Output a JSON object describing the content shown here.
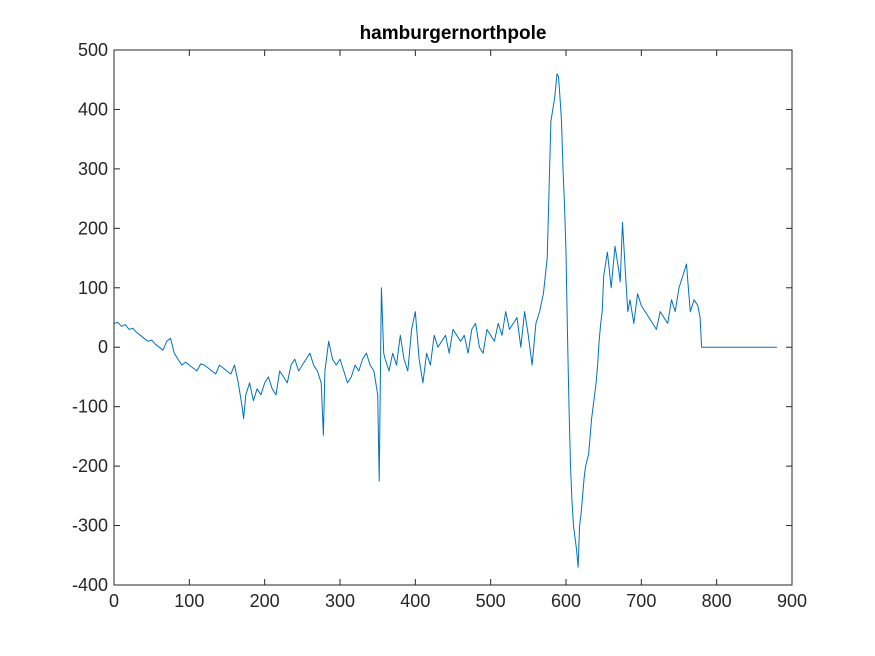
{
  "chart_data": {
    "type": "line",
    "title": "hamburgernorthpole",
    "xlabel": "",
    "ylabel": "",
    "xlim": [
      0,
      900
    ],
    "ylim": [
      -400,
      500
    ],
    "xticks": [
      0,
      100,
      200,
      300,
      400,
      500,
      600,
      700,
      800,
      900
    ],
    "yticks": [
      -400,
      -300,
      -200,
      -100,
      0,
      100,
      200,
      300,
      400,
      500
    ],
    "xtick_labels": [
      "0",
      "100",
      "200",
      "300",
      "400",
      "500",
      "600",
      "700",
      "800",
      "900"
    ],
    "ytick_labels": [
      "-400",
      "-300",
      "-200",
      "-100",
      "0",
      "100",
      "200",
      "300",
      "400",
      "500"
    ],
    "grid": false,
    "legend": "none",
    "colors": {
      "series": "#0072BD",
      "axis": "#262626",
      "background": "#ffffff"
    },
    "series": [
      {
        "x": [
          0,
          5,
          10,
          15,
          20,
          25,
          30,
          35,
          40,
          45,
          50,
          55,
          60,
          65,
          70,
          75,
          80,
          85,
          90,
          95,
          100,
          105,
          110,
          115,
          120,
          125,
          130,
          135,
          140,
          145,
          150,
          155,
          160,
          165,
          170,
          172,
          175,
          180,
          185,
          190,
          195,
          200,
          205,
          210,
          215,
          220,
          225,
          230,
          235,
          240,
          245,
          250,
          255,
          260,
          265,
          270,
          275,
          278,
          280,
          285,
          290,
          295,
          300,
          305,
          310,
          315,
          320,
          325,
          330,
          335,
          340,
          345,
          350,
          352,
          355,
          358,
          360,
          365,
          370,
          375,
          380,
          385,
          390,
          395,
          400,
          405,
          410,
          415,
          420,
          425,
          430,
          435,
          440,
          445,
          450,
          455,
          460,
          465,
          470,
          475,
          480,
          485,
          490,
          495,
          500,
          505,
          510,
          515,
          520,
          525,
          530,
          535,
          540,
          545,
          550,
          555,
          560,
          565,
          570,
          575,
          580,
          585,
          588,
          590,
          592,
          594,
          596,
          598,
          600,
          602,
          604,
          606,
          608,
          610,
          612,
          614,
          616,
          618,
          620,
          622,
          624,
          626,
          628,
          630,
          632,
          634,
          636,
          638,
          640,
          642,
          644,
          646,
          648,
          650,
          655,
          660,
          665,
          670,
          672,
          675,
          680,
          682,
          685,
          690,
          695,
          700,
          705,
          710,
          715,
          720,
          725,
          730,
          735,
          740,
          745,
          750,
          755,
          760,
          763,
          765,
          770,
          775,
          778,
          780,
          800,
          820,
          840,
          860,
          880
        ],
        "y": [
          40,
          42,
          35,
          38,
          30,
          32,
          25,
          20,
          15,
          10,
          12,
          5,
          0,
          -5,
          10,
          15,
          -10,
          -20,
          -30,
          -25,
          -30,
          -35,
          -40,
          -28,
          -30,
          -35,
          -40,
          -45,
          -30,
          -35,
          -40,
          -45,
          -30,
          -60,
          -100,
          -120,
          -80,
          -60,
          -90,
          -70,
          -80,
          -60,
          -50,
          -70,
          -80,
          -40,
          -50,
          -60,
          -30,
          -20,
          -40,
          -30,
          -20,
          -10,
          -30,
          -40,
          -60,
          -148,
          -40,
          10,
          -20,
          -30,
          -20,
          -40,
          -60,
          -50,
          -30,
          -40,
          -20,
          -10,
          -30,
          -40,
          -80,
          -225,
          100,
          -10,
          -20,
          -40,
          -10,
          -30,
          20,
          -20,
          -40,
          30,
          60,
          -20,
          -60,
          -10,
          -30,
          20,
          0,
          10,
          20,
          -10,
          30,
          20,
          10,
          20,
          -10,
          30,
          40,
          0,
          -10,
          30,
          20,
          10,
          40,
          20,
          60,
          30,
          40,
          50,
          0,
          60,
          20,
          -30,
          40,
          60,
          90,
          150,
          380,
          420,
          460,
          455,
          420,
          380,
          300,
          240,
          160,
          20,
          -100,
          -200,
          -260,
          -300,
          -320,
          -340,
          -370,
          -300,
          -280,
          -250,
          -220,
          -200,
          -190,
          -180,
          -150,
          -120,
          -100,
          -80,
          -60,
          -30,
          10,
          40,
          60,
          120,
          160,
          100,
          170,
          130,
          110,
          210,
          100,
          60,
          80,
          40,
          90,
          70,
          60,
          50,
          40,
          30,
          60,
          50,
          40,
          80,
          60,
          100,
          120,
          140,
          90,
          60,
          80,
          70,
          50,
          0,
          0,
          0,
          0,
          0,
          0
        ]
      }
    ]
  }
}
